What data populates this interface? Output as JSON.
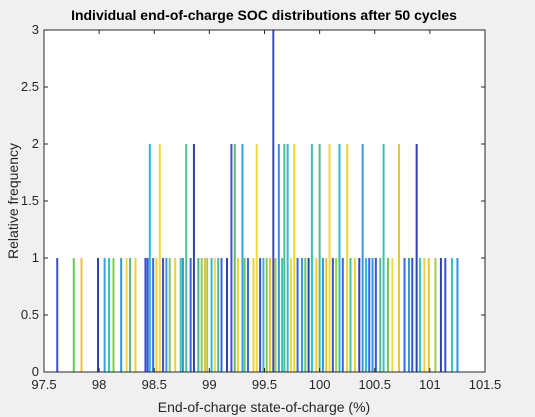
{
  "chart_data": {
    "type": "bar",
    "title": "Individual end-of-charge SOC distributions after 50 cycles",
    "xlabel": "End-of-charge state-of-charge (%)",
    "ylabel": "Relative frequency",
    "xlim": [
      97.5,
      101.5
    ],
    "ylim": [
      0,
      3
    ],
    "xticks": [
      "97.5",
      "98",
      "98.5",
      "99",
      "99.5",
      "100",
      "100.5",
      "101",
      "101.5"
    ],
    "yticks": [
      "0",
      "0.5",
      "1",
      "1.5",
      "2",
      "2.5",
      "3"
    ],
    "grid": false,
    "bars": [
      {
        "x": 97.62,
        "y": 1,
        "color": "#3b50d6"
      },
      {
        "x": 97.77,
        "y": 1,
        "color": "#6cc85a"
      },
      {
        "x": 97.84,
        "y": 1,
        "color": "#e8c43c"
      },
      {
        "x": 97.99,
        "y": 1,
        "color": "#2f3fb8"
      },
      {
        "x": 98.05,
        "y": 1,
        "color": "#3aa0e8"
      },
      {
        "x": 98.09,
        "y": 1,
        "color": "#33c6b4"
      },
      {
        "x": 98.13,
        "y": 1,
        "color": "#7fcb4f"
      },
      {
        "x": 98.2,
        "y": 1,
        "color": "#2f95e0"
      },
      {
        "x": 98.25,
        "y": 1,
        "color": "#f2d93b"
      },
      {
        "x": 98.28,
        "y": 1,
        "color": "#5aba84"
      },
      {
        "x": 98.33,
        "y": 1,
        "color": "#efd22e"
      },
      {
        "x": 98.42,
        "y": 1,
        "color": "#3b50d6"
      },
      {
        "x": 98.44,
        "y": 1,
        "color": "#3b50d6"
      },
      {
        "x": 98.46,
        "y": 2,
        "color": "#2fb7d6"
      },
      {
        "x": 98.49,
        "y": 1,
        "color": "#3566e8"
      },
      {
        "x": 98.52,
        "y": 1,
        "color": "#f0ce34"
      },
      {
        "x": 98.55,
        "y": 2,
        "color": "#f2d93b"
      },
      {
        "x": 98.58,
        "y": 1,
        "color": "#4a47c8"
      },
      {
        "x": 98.61,
        "y": 1,
        "color": "#3a94ea"
      },
      {
        "x": 98.64,
        "y": 1,
        "color": "#7cc65a"
      },
      {
        "x": 98.69,
        "y": 1,
        "color": "#f0d03a"
      },
      {
        "x": 98.74,
        "y": 1,
        "color": "#33c6b4"
      },
      {
        "x": 98.76,
        "y": 1,
        "color": "#2f95e0"
      },
      {
        "x": 98.79,
        "y": 2,
        "color": "#4bbf90"
      },
      {
        "x": 98.83,
        "y": 1,
        "color": "#3566e8"
      },
      {
        "x": 98.86,
        "y": 2,
        "color": "#2f3fb8"
      },
      {
        "x": 98.9,
        "y": 1,
        "color": "#42b4a2"
      },
      {
        "x": 98.93,
        "y": 1,
        "color": "#8ccc4c"
      },
      {
        "x": 98.96,
        "y": 1,
        "color": "#e8c43c"
      },
      {
        "x": 98.98,
        "y": 1,
        "color": "#9ed04a"
      },
      {
        "x": 99.02,
        "y": 1,
        "color": "#2fb7d6"
      },
      {
        "x": 99.05,
        "y": 1,
        "color": "#f2d93b"
      },
      {
        "x": 99.08,
        "y": 1,
        "color": "#4bbf90"
      },
      {
        "x": 99.11,
        "y": 1,
        "color": "#3566e8"
      },
      {
        "x": 99.16,
        "y": 1,
        "color": "#2f3fb8"
      },
      {
        "x": 99.2,
        "y": 2,
        "color": "#3b50d6"
      },
      {
        "x": 99.23,
        "y": 2,
        "color": "#5abb70"
      },
      {
        "x": 99.26,
        "y": 1,
        "color": "#efd22e"
      },
      {
        "x": 99.3,
        "y": 2,
        "color": "#2fa6e6"
      },
      {
        "x": 99.32,
        "y": 1,
        "color": "#6cc85a"
      },
      {
        "x": 99.35,
        "y": 1,
        "color": "#3566e8"
      },
      {
        "x": 99.4,
        "y": 1,
        "color": "#f0ce34"
      },
      {
        "x": 99.43,
        "y": 2,
        "color": "#f2d93b"
      },
      {
        "x": 99.46,
        "y": 1,
        "color": "#3b50d6"
      },
      {
        "x": 99.49,
        "y": 1,
        "color": "#2fb7d6"
      },
      {
        "x": 99.52,
        "y": 1,
        "color": "#7fcb4f"
      },
      {
        "x": 99.55,
        "y": 1,
        "color": "#e8c43c"
      },
      {
        "x": 99.58,
        "y": 3,
        "color": "#3949c6"
      },
      {
        "x": 99.6,
        "y": 1,
        "color": "#9ed04a"
      },
      {
        "x": 99.63,
        "y": 2,
        "color": "#2f95e0"
      },
      {
        "x": 99.66,
        "y": 1,
        "color": "#33c6b4"
      },
      {
        "x": 99.68,
        "y": 2,
        "color": "#4bbf90"
      },
      {
        "x": 99.71,
        "y": 2,
        "color": "#2fb7d6"
      },
      {
        "x": 99.74,
        "y": 1,
        "color": "#f2d93b"
      },
      {
        "x": 99.77,
        "y": 2,
        "color": "#efd22e"
      },
      {
        "x": 99.8,
        "y": 1,
        "color": "#3566e8"
      },
      {
        "x": 99.84,
        "y": 1,
        "color": "#3a94ea"
      },
      {
        "x": 99.87,
        "y": 1,
        "color": "#6cc85a"
      },
      {
        "x": 99.9,
        "y": 1,
        "color": "#2f3fb8"
      },
      {
        "x": 99.93,
        "y": 2,
        "color": "#33c6b4"
      },
      {
        "x": 99.97,
        "y": 1,
        "color": "#f0ce34"
      },
      {
        "x": 100.0,
        "y": 2,
        "color": "#4bbf90"
      },
      {
        "x": 100.03,
        "y": 1,
        "color": "#2f95e0"
      },
      {
        "x": 100.06,
        "y": 1,
        "color": "#e8c43c"
      },
      {
        "x": 100.09,
        "y": 2,
        "color": "#f2d93b"
      },
      {
        "x": 100.12,
        "y": 1,
        "color": "#3b50d6"
      },
      {
        "x": 100.15,
        "y": 1,
        "color": "#9ed04a"
      },
      {
        "x": 100.18,
        "y": 2,
        "color": "#2fb7d6"
      },
      {
        "x": 100.21,
        "y": 1,
        "color": "#3566e8"
      },
      {
        "x": 100.25,
        "y": 2,
        "color": "#efd22e"
      },
      {
        "x": 100.28,
        "y": 1,
        "color": "#33c6b4"
      },
      {
        "x": 100.32,
        "y": 1,
        "color": "#f0ce34"
      },
      {
        "x": 100.36,
        "y": 1,
        "color": "#2f3fb8"
      },
      {
        "x": 100.39,
        "y": 2,
        "color": "#3a94ea"
      },
      {
        "x": 100.42,
        "y": 1,
        "color": "#2fb7d6"
      },
      {
        "x": 100.45,
        "y": 1,
        "color": "#3566e8"
      },
      {
        "x": 100.48,
        "y": 1,
        "color": "#2f95e0"
      },
      {
        "x": 100.51,
        "y": 1,
        "color": "#3b50d6"
      },
      {
        "x": 100.55,
        "y": 1,
        "color": "#4bbf90"
      },
      {
        "x": 100.58,
        "y": 2,
        "color": "#33c6b4"
      },
      {
        "x": 100.62,
        "y": 1,
        "color": "#6cc85a"
      },
      {
        "x": 100.66,
        "y": 1,
        "color": "#f2d93b"
      },
      {
        "x": 100.72,
        "y": 2,
        "color": "#e8c43c"
      },
      {
        "x": 100.77,
        "y": 1,
        "color": "#3566e8"
      },
      {
        "x": 100.81,
        "y": 1,
        "color": "#2f95e0"
      },
      {
        "x": 100.84,
        "y": 1,
        "color": "#3b50d6"
      },
      {
        "x": 100.88,
        "y": 2,
        "color": "#2f3fb8"
      },
      {
        "x": 100.91,
        "y": 1,
        "color": "#33c6b4"
      },
      {
        "x": 100.95,
        "y": 1,
        "color": "#f0ce34"
      },
      {
        "x": 100.99,
        "y": 1,
        "color": "#e8c43c"
      },
      {
        "x": 101.05,
        "y": 1,
        "color": "#9ed04a"
      },
      {
        "x": 101.1,
        "y": 1,
        "color": "#2f3fb8"
      },
      {
        "x": 101.14,
        "y": 1,
        "color": "#3b50d6"
      },
      {
        "x": 101.2,
        "y": 1,
        "color": "#33c6b4"
      },
      {
        "x": 101.25,
        "y": 1,
        "color": "#2f95e0"
      }
    ]
  }
}
